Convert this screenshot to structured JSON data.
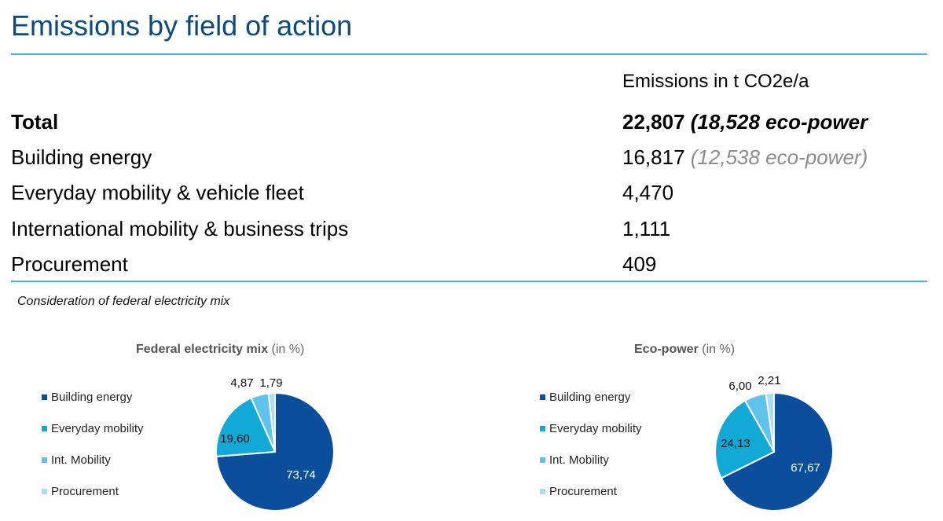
{
  "title": "Emissions by field of action",
  "table": {
    "column_header": "Emissions in t CO2e/a",
    "rows": [
      {
        "label": "Total",
        "value": "22,807",
        "note": "(18,528 eco-power"
      },
      {
        "label": "Building energy",
        "value": "16,817",
        "note": "(12,538 eco-power)"
      },
      {
        "label": "Everyday mobility & vehicle fleet",
        "value": "4,470",
        "note": ""
      },
      {
        "label": "International mobility & business trips",
        "value": "1,111",
        "note": ""
      },
      {
        "label": "Procurement",
        "value": "409",
        "note": ""
      }
    ]
  },
  "footnote": "Consideration of federal electricity mix",
  "colors": {
    "title": "#0b4a7a",
    "rule": "#41b6e6",
    "building": "#0b4f9c",
    "everyday": "#12a9d6",
    "int": "#5fc3ec",
    "procurement": "#a8ddf5"
  },
  "chart_data": [
    {
      "type": "pie",
      "title": "Federal electricity mix",
      "title_suffix": "(in %)",
      "categories": [
        "Building energy",
        "Everyday mobility",
        "Int. Mobility",
        "Procurement"
      ],
      "values": [
        73.74,
        19.6,
        4.87,
        1.79
      ],
      "labels": [
        "73,74",
        "19,60",
        "4,87",
        "1,79"
      ],
      "legend_position": "left"
    },
    {
      "type": "pie",
      "title": "Eco-power",
      "title_suffix": "(in %)",
      "categories": [
        "Building energy",
        "Everyday mobility",
        "Int. Mobility",
        "Procurement"
      ],
      "values": [
        67.67,
        24.13,
        6.0,
        2.21
      ],
      "labels": [
        "67,67",
        "24,13",
        "6,00",
        "2,21"
      ],
      "legend_position": "left"
    }
  ]
}
